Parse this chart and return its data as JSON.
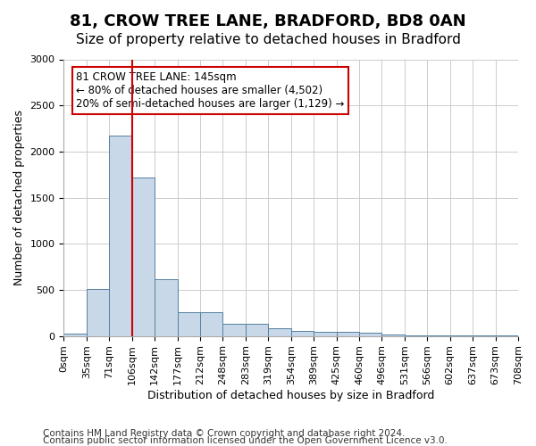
{
  "title": "81, CROW TREE LANE, BRADFORD, BD8 0AN",
  "subtitle": "Size of property relative to detached houses in Bradford",
  "xlabel": "Distribution of detached houses by size in Bradford",
  "ylabel": "Number of detached properties",
  "bar_color": "#c8d8e8",
  "bar_edge_color": "#5580a0",
  "vline_color": "#cc0000",
  "vline_x": 3,
  "annotation_text": "81 CROW TREE LANE: 145sqm\n← 80% of detached houses are smaller (4,502)\n20% of semi-detached houses are larger (1,129) →",
  "annotation_box_color": "#ffffff",
  "annotation_box_edge": "#cc0000",
  "bin_labels": [
    "0sqm",
    "35sqm",
    "71sqm",
    "106sqm",
    "142sqm",
    "177sqm",
    "212sqm",
    "248sqm",
    "283sqm",
    "319sqm",
    "354sqm",
    "389sqm",
    "425sqm",
    "460sqm",
    "496sqm",
    "531sqm",
    "566sqm",
    "602sqm",
    "637sqm",
    "673sqm",
    "708sqm"
  ],
  "bar_values": [
    25,
    510,
    2170,
    1720,
    620,
    260,
    260,
    130,
    130,
    80,
    55,
    40,
    40,
    35,
    20,
    5,
    5,
    5,
    5,
    5
  ],
  "ylim": [
    0,
    3000
  ],
  "yticks": [
    0,
    500,
    1000,
    1500,
    2000,
    2500,
    3000
  ],
  "footnote1": "Contains HM Land Registry data © Crown copyright and database right 2024.",
  "footnote2": "Contains public sector information licensed under the Open Government Licence v3.0.",
  "title_fontsize": 13,
  "subtitle_fontsize": 11,
  "tick_fontsize": 8,
  "label_fontsize": 9,
  "footnote_fontsize": 7.5
}
